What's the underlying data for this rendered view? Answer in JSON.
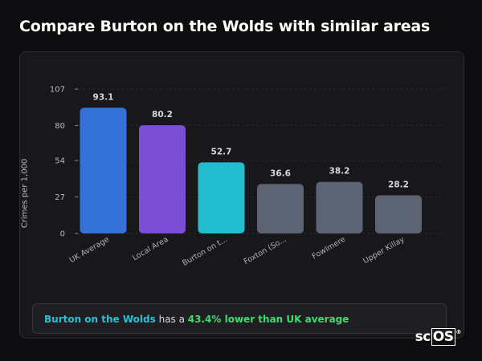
{
  "page": {
    "title": "Compare Burton on the Wolds with similar areas",
    "logo": {
      "prefix": "sc",
      "boxed": "OS",
      "mark": "®"
    }
  },
  "summary": {
    "area": "Burton on the Wolds",
    "middle": " has a ",
    "comparison": "43.4% lower than UK average"
  },
  "colors": {
    "uk_average": "#3471d9",
    "local_area": "#7a4fd6",
    "selected": "#22bcd1",
    "others": "#5c6474",
    "highlight_area": "#22c3d4",
    "highlight_comparison": "#3ddc6f"
  },
  "chart_data": {
    "type": "bar",
    "ylabel": "Crimes per 1,000",
    "xlabel": "",
    "ylim": [
      0,
      107
    ],
    "yticks": [
      0,
      27,
      54,
      80,
      107
    ],
    "grid": true,
    "categories": [
      "UK Average",
      "Local Area",
      "Burton on t...",
      "Foxton (So...",
      "Fowlmere",
      "Upper Killay"
    ],
    "values": [
      93.1,
      80.2,
      52.7,
      36.6,
      38.2,
      28.2
    ],
    "value_labels": [
      "93.1",
      "80.2",
      "52.7",
      "36.6",
      "38.2",
      "28.2"
    ],
    "bar_colors": [
      "#3471d9",
      "#7a4fd6",
      "#22bcd1",
      "#5c6474",
      "#5c6474",
      "#5c6474"
    ]
  }
}
